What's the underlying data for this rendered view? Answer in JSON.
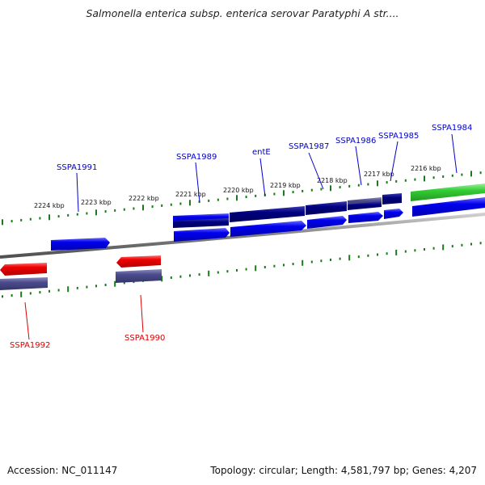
{
  "title": "Salmonella enterica subsp. enterica serovar Paratyphi A str....",
  "footer": {
    "accession": "Accession: NC_011147",
    "summary": "Topology: circular; Length: 4,581,797 bp; Genes: 4,207"
  },
  "ticks": [
    "2224 kbp",
    "2223 kbp",
    "2222 kbp",
    "2221 kbp",
    "2220 kbp",
    "2219 kbp",
    "2218 kbp",
    "2217 kbp",
    "2216 kbp"
  ],
  "genes": [
    {
      "label": "SSPA1991",
      "color": "#0000cc",
      "strand": "forward"
    },
    {
      "label": "SSPA1989",
      "color": "#0000cc",
      "strand": "forward"
    },
    {
      "label": "entE",
      "color": "#0000cc",
      "strand": "forward"
    },
    {
      "label": "SSPA1987",
      "color": "#0000cc",
      "strand": "forward"
    },
    {
      "label": "SSPA1986",
      "color": "#0000cc",
      "strand": "forward"
    },
    {
      "label": "SSPA1985",
      "color": "#0000cc",
      "strand": "forward"
    },
    {
      "label": "SSPA1984",
      "color": "#0000cc",
      "strand": "forward"
    },
    {
      "label": "SSPA1992",
      "color": "#dd0000",
      "strand": "reverse"
    },
    {
      "label": "SSPA1990",
      "color": "#dd0000",
      "strand": "reverse"
    }
  ],
  "colors": {
    "forward_cds": "#0000ee",
    "reverse_cds": "#ee0000",
    "forward_feature": "#000080",
    "reverse_feature": "#4b4b8c",
    "rna": "#33cc33",
    "backbone": "#808080",
    "ticks": "#1a7a1a"
  }
}
